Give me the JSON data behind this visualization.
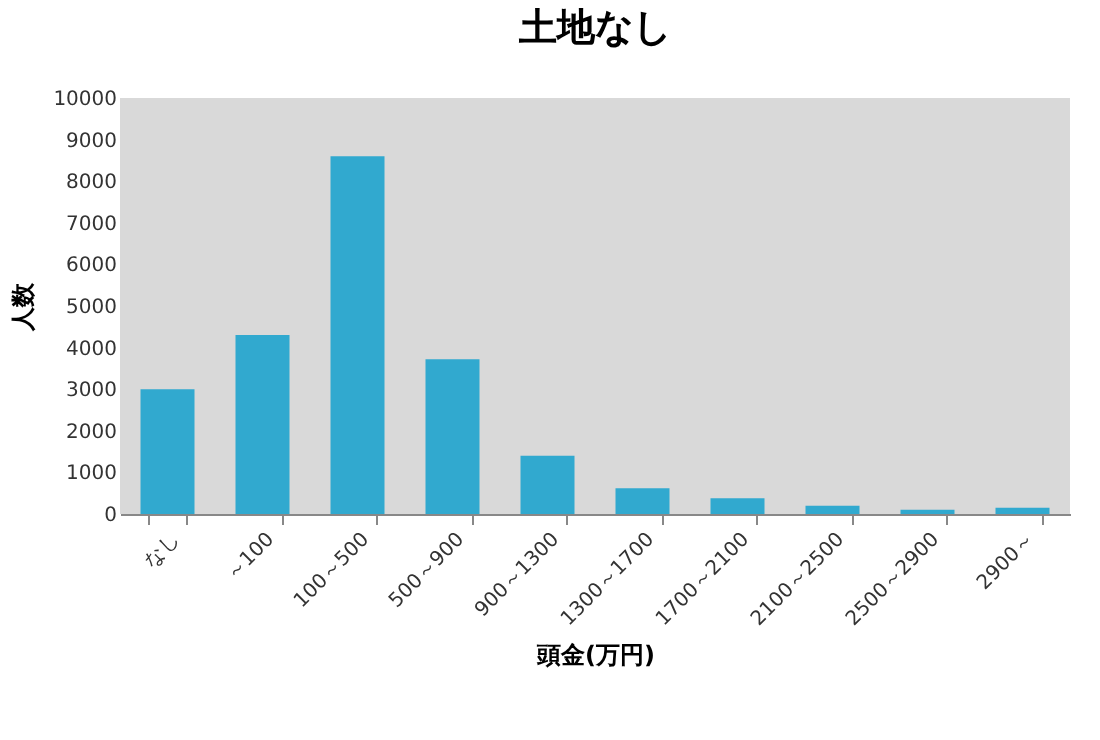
{
  "chart_data": {
    "type": "bar",
    "title": "土地なし",
    "xlabel": "頭金(万円)",
    "ylabel": "人数",
    "categories": [
      "なし",
      "～100",
      "100～500",
      "500～900",
      "900～1300",
      "1300～1700",
      "1700～2100",
      "2100～2500",
      "2500～2900",
      "2900～"
    ],
    "values": [
      3000,
      4300,
      8600,
      3720,
      1400,
      620,
      380,
      200,
      100,
      150
    ],
    "color": "#31a9cf",
    "ylim": [
      0,
      10000
    ],
    "yticks": [
      0,
      1000,
      2000,
      3000,
      4000,
      5000,
      6000,
      7000,
      8000,
      9000,
      10000
    ],
    "grid": false
  }
}
